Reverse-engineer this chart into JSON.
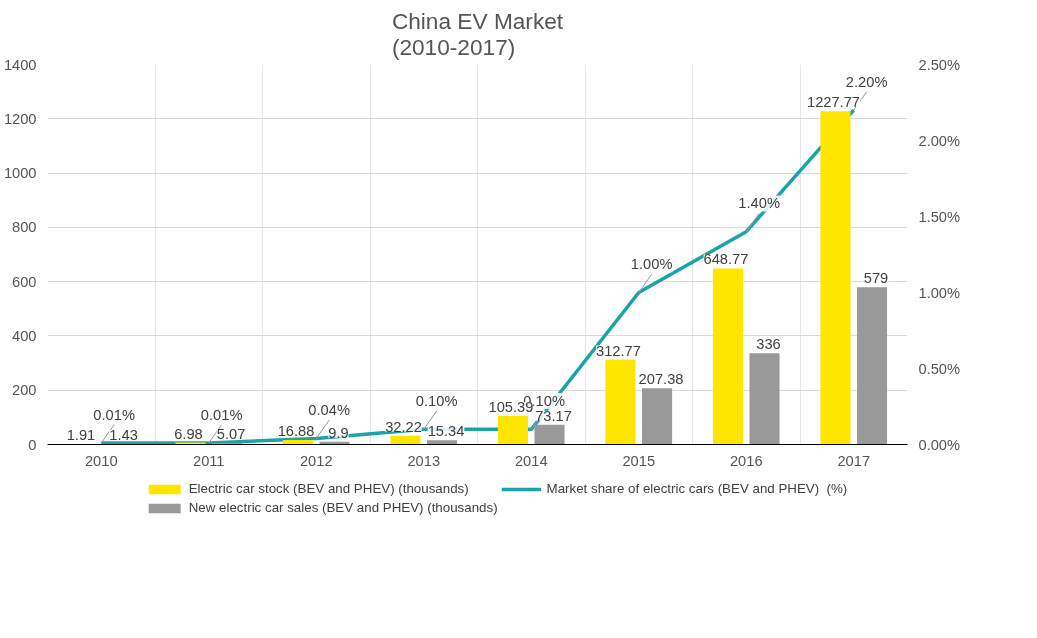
{
  "chart_data": {
    "type": "bar",
    "title": "China EV Market\n(2010-2017)",
    "categories": [
      "2010",
      "2011",
      "2012",
      "2013",
      "2014",
      "2015",
      "2016",
      "2017"
    ],
    "series": [
      {
        "name": "Electric car stock (BEV and PHEV) (thousands)",
        "color": "#ffe600",
        "values": [
          1.91,
          6.98,
          16.88,
          32.22,
          105.39,
          312.77,
          648.77,
          1227.77
        ],
        "value_labels": [
          "1.91",
          "6.98",
          "16.88",
          "32.22",
          "105.39",
          "312.77",
          "648.77",
          "1227.77"
        ]
      },
      {
        "name": "New electric car sales (BEV and PHEV) (thousands)",
        "color": "#999999",
        "values": [
          1.43,
          5.07,
          9.9,
          15.34,
          73.17,
          207.38,
          336,
          579
        ],
        "value_labels": [
          "1.43",
          "5.07",
          "9.9",
          "15.34",
          "73.17",
          "207.38",
          "336",
          "579"
        ]
      },
      {
        "name": "Market share of electric cars (BEV and PHEV)  (%)",
        "type": "line",
        "axis": "y2",
        "color": "#1ba3a9",
        "values": [
          0.01,
          0.01,
          0.04,
          0.1,
          0.1,
          1.0,
          1.4,
          2.2
        ],
        "value_labels": [
          "0.01%",
          "0.01%",
          "0.04%",
          "0.10%",
          "0.10%",
          "1.00%",
          "1.40%",
          "2.20%"
        ]
      }
    ],
    "ylim": [
      0,
      1400
    ],
    "yticks": [
      0,
      200,
      400,
      600,
      800,
      1000,
      1200,
      1400
    ],
    "y2lim": [
      0,
      2.5
    ],
    "y2ticks": [
      {
        "value": 0,
        "label": "0.00%"
      },
      {
        "value": 0.5,
        "label": "0.50%"
      },
      {
        "value": 1,
        "label": "1.00%"
      },
      {
        "value": 1.5,
        "label": "1.50%"
      },
      {
        "value": 2,
        "label": "2.00%"
      },
      {
        "value": 2.5,
        "label": "2.50%"
      }
    ],
    "grid": true,
    "legend": "bottom",
    "marker": "none",
    "line_style": "solid"
  }
}
